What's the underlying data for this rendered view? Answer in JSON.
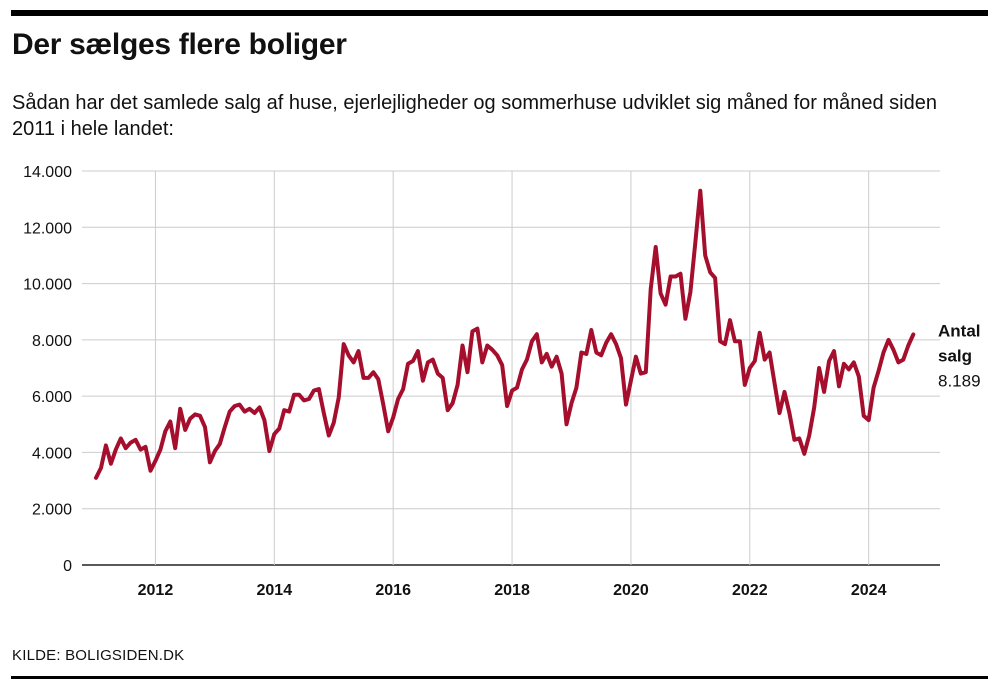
{
  "header": {
    "title": "Der sælges flere boliger",
    "subtitle": "Sådan har det samlede salg af huse, ejerlejligheder og sommerhuse udviklet sig måned for måned siden 2011 i hele landet:"
  },
  "footer": {
    "source": "KILDE: BOLIGSIDEN.DK"
  },
  "chart_data": {
    "type": "line",
    "title": "Der sælges flere boliger",
    "subtitle": "Sådan har det samlede salg af huse, ejerlejligheder og sommerhuse udviklet sig måned for måned siden 2011 i hele landet:",
    "xlabel": "",
    "ylabel": "",
    "x_range": [
      "2011-01",
      "2024-10"
    ],
    "ylim": [
      0,
      14000
    ],
    "y_ticks": [
      0,
      2000,
      4000,
      6000,
      8000,
      10000,
      12000,
      14000
    ],
    "y_tick_labels": [
      "0",
      "2.000",
      "4.000",
      "6.000",
      "8.000",
      "10.000",
      "12.000",
      "14.000"
    ],
    "x_ticks": [
      2012,
      2014,
      2016,
      2018,
      2020,
      2022,
      2024
    ],
    "x_tick_labels": [
      "2012",
      "2014",
      "2016",
      "2018",
      "2020",
      "2022",
      "2024"
    ],
    "grid": "vertical and horizontal",
    "line_color": "#a50f2d",
    "series": [
      {
        "name": "Antal salg",
        "end_value_label": "8.189",
        "start": "2011-01",
        "values": [
          3100,
          3450,
          4250,
          3600,
          4100,
          4500,
          4150,
          4350,
          4450,
          4100,
          4200,
          3350,
          3700,
          4100,
          4750,
          5100,
          4150,
          5550,
          4800,
          5200,
          5350,
          5300,
          4900,
          3650,
          4050,
          4300,
          4900,
          5450,
          5650,
          5700,
          5450,
          5550,
          5400,
          5600,
          5150,
          4050,
          4650,
          4850,
          5500,
          5450,
          6050,
          6050,
          5850,
          5900,
          6200,
          6250,
          5400,
          4600,
          5050,
          5950,
          7850,
          7450,
          7200,
          7600,
          6650,
          6650,
          6850,
          6600,
          5700,
          4750,
          5250,
          5900,
          6250,
          7150,
          7250,
          7600,
          6550,
          7200,
          7300,
          6800,
          6650,
          5500,
          5750,
          6400,
          7800,
          6850,
          8300,
          8400,
          7200,
          7800,
          7650,
          7450,
          7100,
          5650,
          6200,
          6300,
          6950,
          7300,
          7950,
          8200,
          7200,
          7500,
          7050,
          7400,
          6800,
          5000,
          5750,
          6300,
          7550,
          7500,
          8350,
          7550,
          7450,
          7900,
          8200,
          7850,
          7350,
          5700,
          6550,
          7400,
          6800,
          6850,
          9800,
          11300,
          9650,
          9250,
          10250,
          10250,
          10350,
          8750,
          9700,
          11450,
          13300,
          11000,
          10400,
          10200,
          7950,
          7850,
          8700,
          7950,
          7950,
          6400,
          7000,
          7250,
          8250,
          7300,
          7550,
          6450,
          5400,
          6150,
          5400,
          4450,
          4500,
          3950,
          4600,
          5600,
          7000,
          6150,
          7250,
          7600,
          6350,
          7150,
          6950,
          7200,
          6700,
          5300,
          5150,
          6300,
          6900,
          7550,
          8000,
          7650,
          7200,
          7300,
          7800,
          8189
        ]
      }
    ],
    "legend": "end-of-line label at right"
  }
}
